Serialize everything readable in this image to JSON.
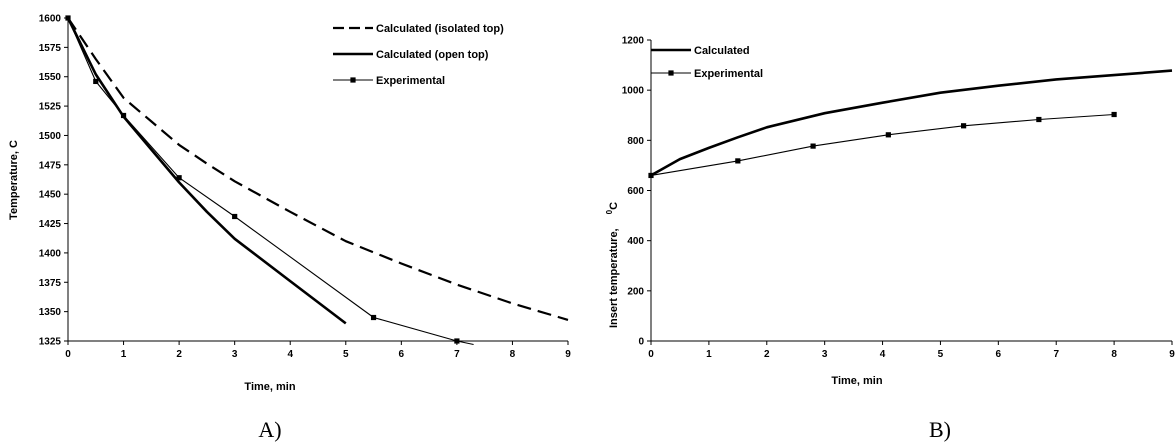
{
  "chart_data": [
    {
      "type": "line",
      "panel_label": "A)",
      "xlabel": "Time, min",
      "ylabel": "Temperature, C",
      "xlim": [
        0,
        9
      ],
      "ylim": [
        1325,
        1600
      ],
      "xticks": [
        "0",
        "1",
        "2",
        "3",
        "4",
        "5",
        "6",
        "7",
        "8",
        "9"
      ],
      "yticks": [
        "1325",
        "1350",
        "1375",
        "1400",
        "1425",
        "1450",
        "1475",
        "1500",
        "1525",
        "1550",
        "1575",
        "1600"
      ],
      "grid": false,
      "legend_placement": "top-right",
      "series": [
        {
          "name": "Calculated (isolated top)",
          "style": "dashed",
          "x": [
            0,
            0.5,
            1,
            1.5,
            2,
            2.5,
            3,
            4,
            5,
            6,
            7,
            8,
            9
          ],
          "y": [
            1600,
            1565,
            1532,
            1512,
            1492,
            1476,
            1461,
            1435,
            1410,
            1391,
            1373,
            1357,
            1343
          ]
        },
        {
          "name": "Calculated (open top)",
          "style": "thick",
          "x": [
            0,
            0.5,
            1,
            1.5,
            2,
            2.5,
            3,
            4,
            5
          ],
          "y": [
            1600,
            1552,
            1516,
            1488,
            1460,
            1435,
            1412,
            1376,
            1340
          ]
        },
        {
          "name": "Experimental",
          "style": "thin-marker",
          "x": [
            0,
            0.5,
            1,
            2,
            3,
            5.5,
            7,
            7.3
          ],
          "y": [
            1600,
            1546,
            1517,
            1464,
            1431,
            1345,
            1325,
            1322
          ]
        }
      ]
    },
    {
      "type": "line",
      "panel_label": "B)",
      "xlabel": "Time, min",
      "ylabel": "Insert temperature,",
      "ylabel_unit": "0",
      "ylabel_unit_suffix": "C",
      "xlim": [
        0,
        9
      ],
      "ylim": [
        0,
        1200
      ],
      "xticks": [
        "0",
        "1",
        "2",
        "3",
        "4",
        "5",
        "6",
        "7",
        "8",
        "9"
      ],
      "yticks": [
        "0",
        "200",
        "400",
        "600",
        "800",
        "1000",
        "1200"
      ],
      "grid": false,
      "legend_placement": "top-left",
      "series": [
        {
          "name": "Calculated",
          "style": "thick",
          "x": [
            0,
            0.5,
            1,
            1.5,
            2,
            3,
            4,
            5,
            6,
            7,
            8,
            9
          ],
          "y": [
            660,
            725,
            770,
            812,
            852,
            908,
            950,
            990,
            1018,
            1043,
            1060,
            1078
          ]
        },
        {
          "name": "Experimental",
          "style": "thin-marker",
          "x": [
            0,
            1.5,
            2.8,
            4.1,
            5.4,
            6.7,
            8
          ],
          "y": [
            660,
            718,
            777,
            822,
            858,
            883,
            903
          ]
        }
      ]
    }
  ]
}
